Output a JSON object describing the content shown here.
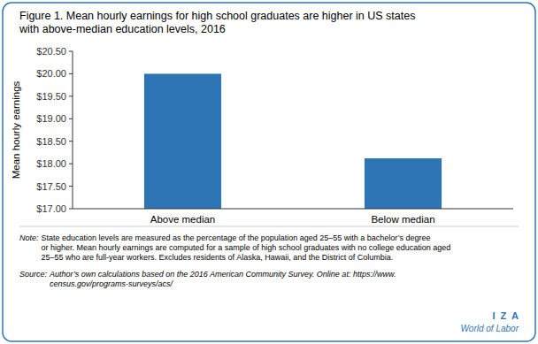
{
  "chart_data": {
    "type": "bar",
    "title": "Figure 1. Mean hourly earnings for high school graduates are higher in US states\nwith above-median education levels, 2016",
    "categories": [
      "Above median",
      "Below median"
    ],
    "values": [
      20.0,
      18.12
    ],
    "color": "#2E75B6",
    "ylabel": "Mean hourly earnings",
    "ylim": [
      17.0,
      20.5
    ],
    "yticks": [
      {
        "value": 17.0,
        "label": "$17.00"
      },
      {
        "value": 17.5,
        "label": "$17.50"
      },
      {
        "value": 18.0,
        "label": "$18.00"
      },
      {
        "value": 18.5,
        "label": "$18.50"
      },
      {
        "value": 19.0,
        "label": "$19.00"
      },
      {
        "value": 19.5,
        "label": "$19.50"
      },
      {
        "value": 20.0,
        "label": "$20.00"
      },
      {
        "value": 20.5,
        "label": "$20.50"
      }
    ],
    "grid": false,
    "annotations": [
      {
        "label": "Note:",
        "text": " State education levels are measured as the percentage of the population aged 25–55 with a bachelor’s degree\nor higher. Mean hourly earnings are computed for a sample of high school graduates with no college education aged\n25–55 who are full-year workers. Excludes residents of Alaska, Hawaii, and the District of Columbia."
      },
      {
        "label": "Source:",
        "text": " Author’s own calculations based on the 2016 American Community Survey. Online at: https://www.\ncensus.gov/programs-surveys/acs/"
      },
      {
        "text": "I  Z  A"
      },
      {
        "text": "World of Labor"
      }
    ]
  }
}
